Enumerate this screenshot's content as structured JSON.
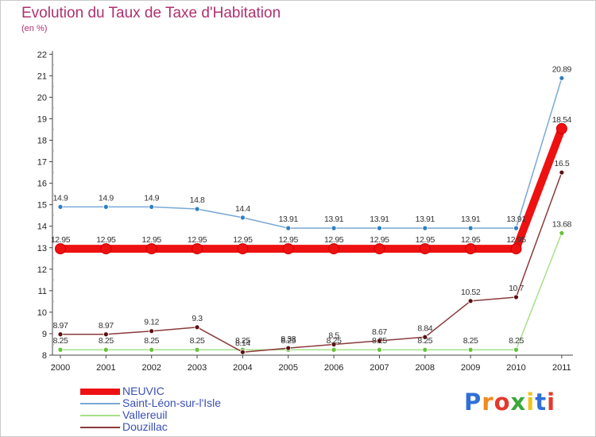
{
  "chart_data": {
    "type": "line",
    "title": "Evolution du Taux de Taxe d'Habitation",
    "subtitle": "(en %)",
    "xlabel": "",
    "ylabel": "",
    "x": [
      "2000",
      "2001",
      "2002",
      "2003",
      "2004",
      "2005",
      "2006",
      "2007",
      "2008",
      "2009",
      "2010",
      "2011"
    ],
    "ylim": [
      8,
      22
    ],
    "yticks": [
      8,
      9,
      10,
      11,
      12,
      13,
      14,
      15,
      16,
      17,
      18,
      19,
      20,
      21,
      22
    ],
    "grid": false,
    "legend_position": "bottom-left",
    "series": [
      {
        "name": "NEUVIC",
        "color": "#ee1111",
        "values": [
          12.95,
          12.95,
          12.95,
          12.95,
          12.95,
          12.95,
          12.95,
          12.95,
          12.95,
          12.95,
          12.95,
          18.54
        ],
        "labels": [
          "12.95",
          "12.95",
          "12.95",
          "12.95",
          "12.95",
          "12.95",
          "12.95",
          "12.95",
          "12.95",
          "12.95",
          "12.95",
          "18.54"
        ]
      },
      {
        "name": "Saint-Léon-sur-l'Isle",
        "color": "#7aa8d6",
        "marker_color": "#2f7fc0",
        "values": [
          14.9,
          14.9,
          14.9,
          14.8,
          14.4,
          13.91,
          13.91,
          13.91,
          13.91,
          13.91,
          13.91,
          20.89
        ],
        "labels": [
          "14.9",
          "14.9",
          "14.9",
          "14.8",
          "14.4",
          "13.91",
          "13.91",
          "13.91",
          "13.91",
          "13.91",
          "13.91",
          "20.89"
        ]
      },
      {
        "name": "Vallereuil",
        "color": "#a6e08a",
        "marker_color": "#66c23a",
        "values": [
          8.25,
          8.25,
          8.25,
          8.25,
          8.25,
          8.25,
          8.25,
          8.25,
          8.25,
          8.25,
          8.25,
          13.68
        ],
        "labels": [
          "8.25",
          "8.25",
          "8.25",
          "8.25",
          "8.25",
          "8.25",
          "8.25",
          "8.25",
          "8.25",
          "8.25",
          "8.25",
          "13.68"
        ]
      },
      {
        "name": "Douzillac",
        "color": "#8b3a3a",
        "marker_color": "#5a1010",
        "values": [
          8.97,
          8.97,
          9.12,
          9.3,
          8.14,
          8.33,
          8.5,
          8.67,
          8.84,
          10.52,
          10.7,
          16.5
        ],
        "labels": [
          "8.97",
          "8.97",
          "9.12",
          "9.3",
          "8.14",
          "8.33",
          "8.5",
          "8.67",
          "8.84",
          "10.52",
          "10.7",
          "16.5"
        ]
      }
    ]
  },
  "brand": {
    "letters": [
      "P",
      "r",
      "o",
      "x",
      "i",
      "t",
      "i"
    ],
    "colors": [
      "#2f6fd8",
      "#f08a1c",
      "#e43a2b",
      "#3aa83a",
      "#f0c419",
      "#2f6fd8",
      "#e43a2b"
    ]
  }
}
